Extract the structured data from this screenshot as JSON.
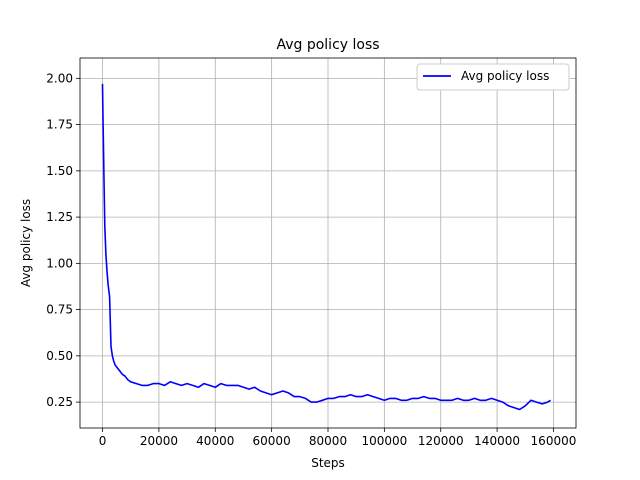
{
  "chart_data": {
    "type": "line",
    "title": "Avg policy loss",
    "xlabel": "Steps",
    "ylabel": "Avg policy loss",
    "xlim": [
      -8000,
      168000
    ],
    "ylim": [
      0.11,
      2.11
    ],
    "xticks": [
      0,
      20000,
      40000,
      60000,
      80000,
      100000,
      120000,
      140000,
      160000
    ],
    "xtick_labels": [
      "0",
      "20000",
      "40000",
      "60000",
      "80000",
      "100000",
      "120000",
      "140000",
      "160000"
    ],
    "yticks": [
      0.25,
      0.5,
      0.75,
      1.0,
      1.25,
      1.5,
      1.75,
      2.0
    ],
    "ytick_labels": [
      "0.25",
      "0.50",
      "0.75",
      "1.00",
      "1.25",
      "1.50",
      "1.75",
      "2.00"
    ],
    "grid": true,
    "legend_position": "upper right",
    "series": [
      {
        "name": "Avg policy loss",
        "color": "#0000ff",
        "x": [
          0,
          200,
          500,
          800,
          1200,
          1600,
          2000,
          2500,
          3000,
          3500,
          4000,
          4500,
          5000,
          6000,
          7000,
          8000,
          9000,
          10000,
          12000,
          14000,
          16000,
          18000,
          20000,
          22000,
          24000,
          26000,
          28000,
          30000,
          32000,
          34000,
          36000,
          38000,
          40000,
          42000,
          44000,
          46000,
          48000,
          50000,
          52000,
          54000,
          56000,
          58000,
          60000,
          62000,
          64000,
          66000,
          68000,
          70000,
          72000,
          74000,
          76000,
          78000,
          80000,
          82000,
          84000,
          86000,
          88000,
          90000,
          92000,
          94000,
          96000,
          98000,
          100000,
          102000,
          104000,
          106000,
          108000,
          110000,
          112000,
          114000,
          116000,
          118000,
          120000,
          122000,
          124000,
          126000,
          128000,
          130000,
          132000,
          134000,
          136000,
          138000,
          140000,
          142000,
          144000,
          146000,
          148000,
          150000,
          152000,
          154000,
          156000,
          158000,
          159000
        ],
        "y": [
          1.97,
          1.75,
          1.45,
          1.2,
          1.05,
          0.95,
          0.88,
          0.82,
          0.55,
          0.5,
          0.47,
          0.45,
          0.44,
          0.42,
          0.4,
          0.39,
          0.37,
          0.36,
          0.35,
          0.34,
          0.34,
          0.35,
          0.35,
          0.34,
          0.36,
          0.35,
          0.34,
          0.35,
          0.34,
          0.33,
          0.35,
          0.34,
          0.33,
          0.35,
          0.34,
          0.34,
          0.34,
          0.33,
          0.32,
          0.33,
          0.31,
          0.3,
          0.29,
          0.3,
          0.31,
          0.3,
          0.28,
          0.28,
          0.27,
          0.25,
          0.25,
          0.26,
          0.27,
          0.27,
          0.28,
          0.28,
          0.29,
          0.28,
          0.28,
          0.29,
          0.28,
          0.27,
          0.26,
          0.27,
          0.27,
          0.26,
          0.26,
          0.27,
          0.27,
          0.28,
          0.27,
          0.27,
          0.26,
          0.26,
          0.26,
          0.27,
          0.26,
          0.26,
          0.27,
          0.26,
          0.26,
          0.27,
          0.26,
          0.25,
          0.23,
          0.22,
          0.21,
          0.23,
          0.26,
          0.25,
          0.24,
          0.25,
          0.26
        ]
      }
    ]
  }
}
